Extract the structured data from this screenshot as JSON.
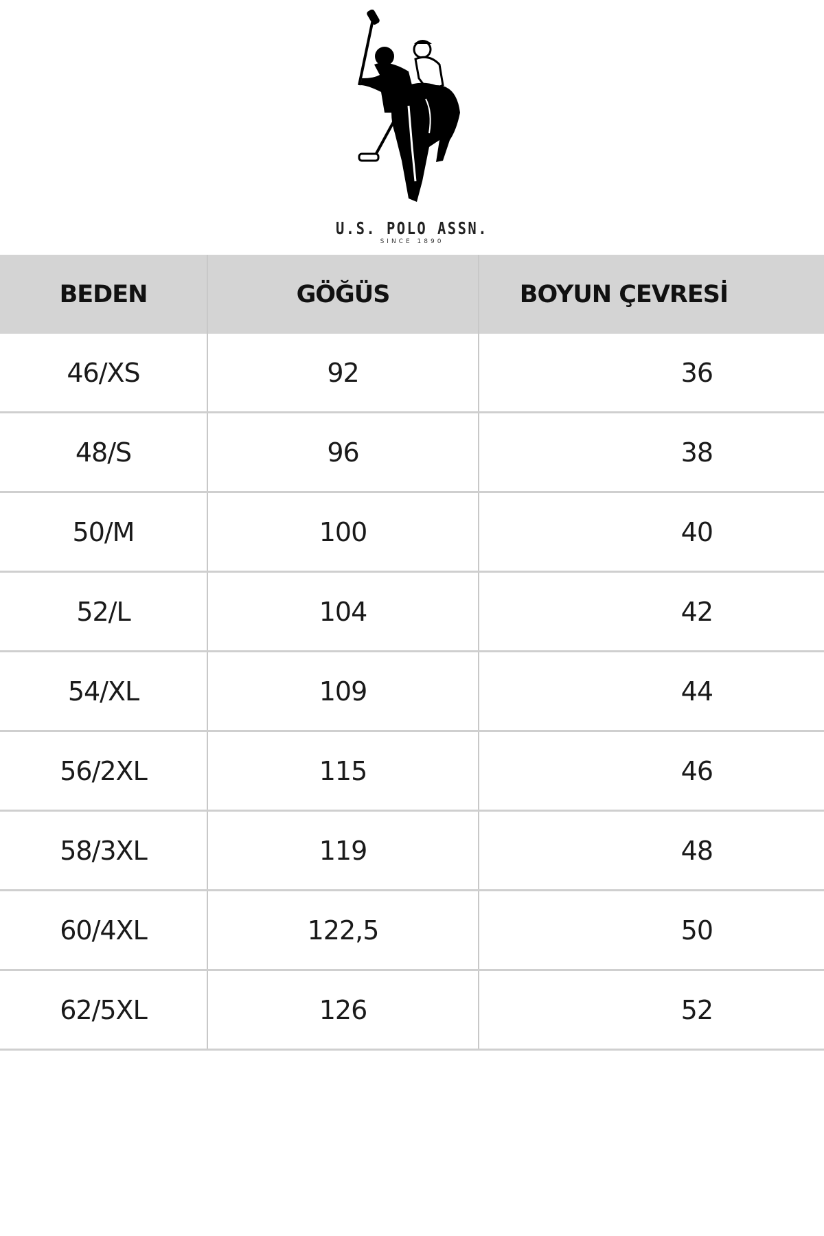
{
  "logo": {
    "brand": "U.S. POLO ASSN.",
    "tagline": "SINCE 1890",
    "icon": "polo-players-logo"
  },
  "table": {
    "headers": [
      "BEDEN",
      "GÖĞÜS",
      "BOYUN ÇEVRESİ"
    ],
    "rows": [
      [
        "46/XS",
        "92",
        "36"
      ],
      [
        "48/S",
        "96",
        "38"
      ],
      [
        "50/M",
        "100",
        "40"
      ],
      [
        "52/L",
        "104",
        "42"
      ],
      [
        "54/XL",
        "109",
        "44"
      ],
      [
        "56/2XL",
        "115",
        "46"
      ],
      [
        "58/3XL",
        "119",
        "48"
      ],
      [
        "60/4XL",
        "122,5",
        "50"
      ],
      [
        "62/5XL",
        "126",
        "52"
      ]
    ]
  },
  "colors": {
    "header_bg": "#d4d4d4",
    "divider": "#cfcfcf"
  }
}
